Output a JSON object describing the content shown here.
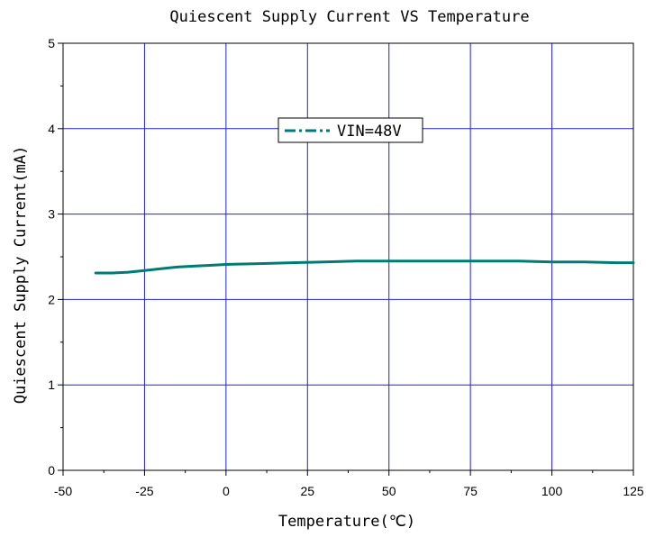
{
  "chart_data": {
    "type": "line",
    "title": "Quiescent Supply Current VS Temperature",
    "xlabel": "Temperature(℃)",
    "ylabel": "Quiescent Supply Current(mA)",
    "xlim": [
      -50,
      125
    ],
    "ylim": [
      0,
      5
    ],
    "xticks": [
      "-50",
      "-25",
      "0",
      "25",
      "50",
      "75",
      "100",
      "125"
    ],
    "yticks": [
      "0",
      "1",
      "2",
      "3",
      "4",
      "5"
    ],
    "grid": true,
    "grid_color": "#2222cc",
    "legend_position": "upper-center",
    "series": [
      {
        "name": "VIN=48V",
        "color": "#007b74",
        "line_style": "dash-dot",
        "x": [
          -40,
          -35,
          -30,
          -25,
          -20,
          -15,
          -10,
          -5,
          0,
          10,
          20,
          30,
          40,
          50,
          60,
          70,
          80,
          90,
          100,
          110,
          120,
          125
        ],
        "y": [
          2.31,
          2.31,
          2.32,
          2.34,
          2.36,
          2.38,
          2.39,
          2.4,
          2.41,
          2.42,
          2.43,
          2.44,
          2.45,
          2.45,
          2.45,
          2.45,
          2.45,
          2.45,
          2.44,
          2.44,
          2.43,
          2.43
        ]
      }
    ]
  }
}
